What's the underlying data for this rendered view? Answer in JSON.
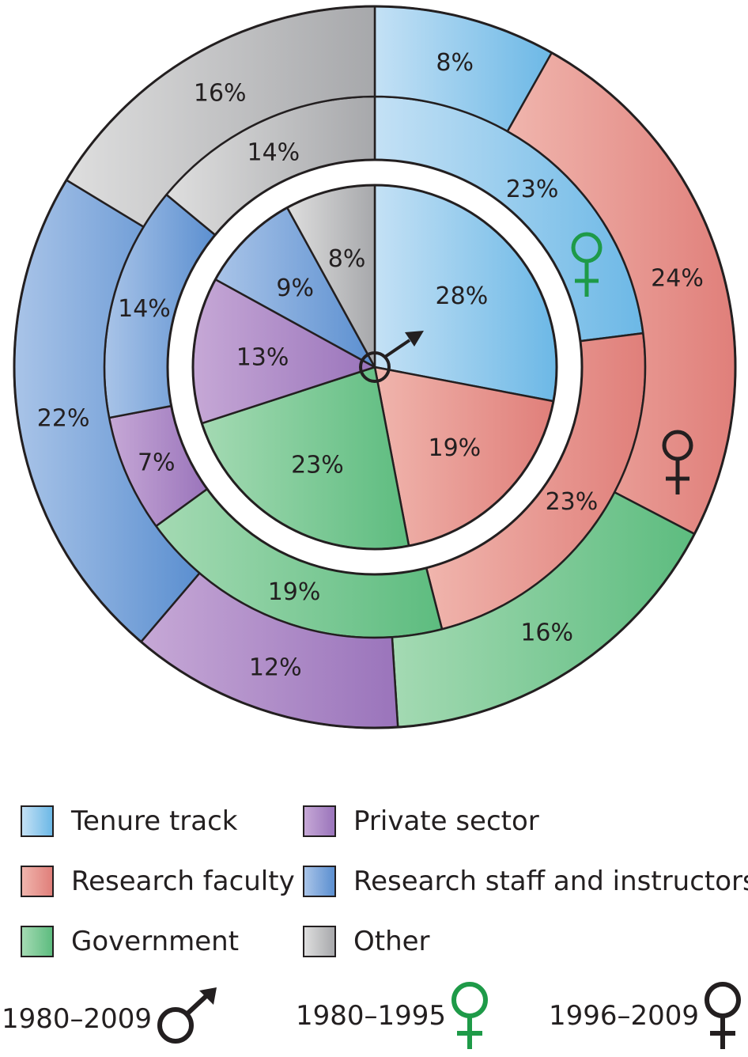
{
  "chart_data": {
    "type": "pie",
    "rings": [
      {
        "period": "1980–2009",
        "symbol": "male",
        "slices": [
          {
            "category": "Tenure track",
            "value": 28,
            "label": "28%"
          },
          {
            "category": "Research faculty",
            "value": 19,
            "label": "19%"
          },
          {
            "category": "Government",
            "value": 23,
            "label": "23%"
          },
          {
            "category": "Private sector",
            "value": 13,
            "label": "13%"
          },
          {
            "category": "Research staff and instructors",
            "value": 9,
            "label": "9%"
          },
          {
            "category": "Other",
            "value": 8,
            "label": "8%"
          }
        ]
      },
      {
        "period": "1980–1995",
        "symbol": "female",
        "slices": [
          {
            "category": "Tenure track",
            "value": 23,
            "label": "23%"
          },
          {
            "category": "Research faculty",
            "value": 23,
            "label": "23%"
          },
          {
            "category": "Government",
            "value": 19,
            "label": "19%"
          },
          {
            "category": "Private sector",
            "value": 7,
            "label": "7%"
          },
          {
            "category": "Research staff and instructors",
            "value": 14,
            "label": "14%"
          },
          {
            "category": "Other",
            "value": 14,
            "label": "14%"
          }
        ]
      },
      {
        "period": "1996–2009",
        "symbol": "female",
        "slices": [
          {
            "category": "Tenure track",
            "value": 8,
            "label": "8%"
          },
          {
            "category": "Research faculty",
            "value": 24,
            "label": "24%"
          },
          {
            "category": "Government",
            "value": 16,
            "label": "16%"
          },
          {
            "category": "Private sector",
            "value": 12,
            "label": "12%"
          },
          {
            "category": "Research staff and instructors",
            "value": 22,
            "label": "22%"
          },
          {
            "category": "Other",
            "value": 16,
            "label": "16%"
          }
        ]
      }
    ],
    "ring_symbols": {
      "1980–1995": "1980–1995",
      "1996–2009": "1996–2009"
    },
    "legend": [
      {
        "name": "Tenure track",
        "colors": [
          "#c4e1f5",
          "#6cb8e6"
        ]
      },
      {
        "name": "Research faculty",
        "colors": [
          "#f0b5ad",
          "#e07f7a"
        ]
      },
      {
        "name": "Government",
        "colors": [
          "#a4dab3",
          "#5dbc7f"
        ]
      },
      {
        "name": "Private sector",
        "colors": [
          "#c6a8d6",
          "#9a74bb"
        ]
      },
      {
        "name": "Research staff and instructors",
        "colors": [
          "#a9c4e8",
          "#5b8fd0"
        ]
      },
      {
        "name": "Other",
        "colors": [
          "#dedede",
          "#a7a8ab"
        ]
      }
    ],
    "legend_layout": "two-columns-below-chart"
  },
  "periods": [
    {
      "label": "1980–2009",
      "symbol": "male",
      "color": "#231f20"
    },
    {
      "label": "1980–1995",
      "symbol": "female",
      "color": "#1e9a48"
    },
    {
      "label": "1996–2009",
      "symbol": "female",
      "color": "#231f20"
    }
  ]
}
